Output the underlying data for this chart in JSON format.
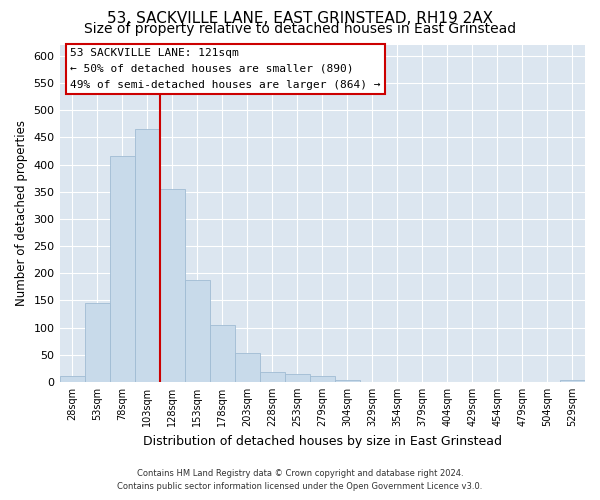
{
  "title": "53, SACKVILLE LANE, EAST GRINSTEAD, RH19 2AX",
  "subtitle": "Size of property relative to detached houses in East Grinstead",
  "xlabel": "Distribution of detached houses by size in East Grinstead",
  "ylabel": "Number of detached properties",
  "footer_line1": "Contains HM Land Registry data © Crown copyright and database right 2024.",
  "footer_line2": "Contains public sector information licensed under the Open Government Licence v3.0.",
  "bin_labels": [
    "28sqm",
    "53sqm",
    "78sqm",
    "103sqm",
    "128sqm",
    "153sqm",
    "178sqm",
    "203sqm",
    "228sqm",
    "253sqm",
    "279sqm",
    "304sqm",
    "329sqm",
    "354sqm",
    "379sqm",
    "404sqm",
    "429sqm",
    "454sqm",
    "479sqm",
    "504sqm",
    "529sqm"
  ],
  "bar_heights": [
    10,
    145,
    415,
    465,
    355,
    188,
    105,
    53,
    18,
    14,
    10,
    4,
    0,
    0,
    0,
    0,
    0,
    0,
    0,
    0,
    3
  ],
  "bar_color": "#c8daea",
  "bar_edge_color": "#a0bcd4",
  "vline_color": "#cc0000",
  "vline_x_index": 4,
  "annotation_title": "53 SACKVILLE LANE: 121sqm",
  "annotation_line1": "← 50% of detached houses are smaller (890)",
  "annotation_line2": "49% of semi-detached houses are larger (864) →",
  "annotation_box_color": "white",
  "annotation_box_edge_color": "#cc0000",
  "ylim": [
    0,
    620
  ],
  "yticks": [
    0,
    50,
    100,
    150,
    200,
    250,
    300,
    350,
    400,
    450,
    500,
    550,
    600
  ],
  "bg_color": "#dce6f0",
  "title_fontsize": 11,
  "subtitle_fontsize": 10
}
